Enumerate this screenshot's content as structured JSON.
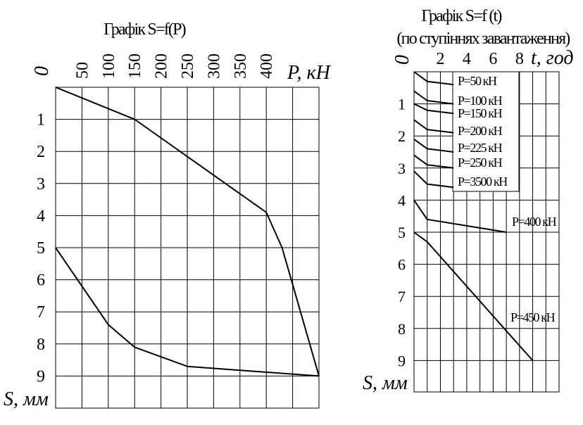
{
  "chart_data": [
    {
      "type": "line",
      "title": "Графік S=f(P)",
      "xlabel": "P, кН",
      "ylabel": "S, мм",
      "origin_label": "0",
      "xlim": [
        0,
        500
      ],
      "ylim": [
        0,
        10
      ],
      "y_inverted": true,
      "grid": true,
      "x_ticks": [
        "50",
        "100",
        "150",
        "200",
        "250",
        "300",
        "350",
        "400"
      ],
      "y_ticks": [
        "1",
        "2",
        "3",
        "4",
        "5",
        "6",
        "7",
        "8",
        "9"
      ],
      "series": [
        {
          "role": "loading",
          "x": [
            0,
            150,
            400,
            430,
            500
          ],
          "y": [
            0,
            1.0,
            3.9,
            5.0,
            9.0
          ]
        },
        {
          "role": "unloading",
          "x": [
            500,
            250,
            150,
            100,
            0
          ],
          "y": [
            9.0,
            8.7,
            8.1,
            7.4,
            5.0
          ]
        }
      ]
    },
    {
      "type": "line",
      "title": "Графік S=f (t)",
      "subtitle": "(по ступіннях завантаження)",
      "xlabel": "t, год",
      "ylabel": "S, мм",
      "origin_label": "0",
      "xlim": [
        0,
        11
      ],
      "ylim": [
        0,
        10
      ],
      "y_inverted": true,
      "grid": true,
      "x_ticks": [
        "2",
        "4",
        "6",
        "8"
      ],
      "y_ticks": [
        "1",
        "2",
        "3",
        "4",
        "5",
        "6",
        "7",
        "8",
        "9"
      ],
      "series": [
        {
          "name": "P=50 кН",
          "t": [
            0,
            1,
            3
          ],
          "s": [
            0.0,
            0.3,
            0.4
          ]
        },
        {
          "name": "P=100 кН",
          "t": [
            0,
            1,
            3
          ],
          "s": [
            0.6,
            0.9,
            1.0
          ]
        },
        {
          "name": "P=150 кН",
          "t": [
            0,
            1,
            3
          ],
          "s": [
            1.0,
            1.2,
            1.3
          ]
        },
        {
          "name": "P=200 кН",
          "t": [
            0,
            1,
            3
          ],
          "s": [
            1.5,
            1.8,
            1.9
          ]
        },
        {
          "name": "P=225 кН",
          "t": [
            0,
            1,
            3
          ],
          "s": [
            2.1,
            2.4,
            2.5
          ]
        },
        {
          "name": "P=250 кН",
          "t": [
            0,
            1,
            3
          ],
          "s": [
            2.6,
            2.9,
            3.0
          ]
        },
        {
          "name": "P=3500 кН",
          "t": [
            0,
            1,
            3
          ],
          "s": [
            3.1,
            3.5,
            3.6
          ]
        },
        {
          "name": "P=400 кН",
          "t": [
            0,
            1,
            7
          ],
          "s": [
            4.0,
            4.6,
            5.0
          ]
        },
        {
          "name": "P=450 кН",
          "t": [
            0,
            1,
            9
          ],
          "s": [
            5.0,
            5.3,
            9.0
          ]
        }
      ]
    }
  ]
}
